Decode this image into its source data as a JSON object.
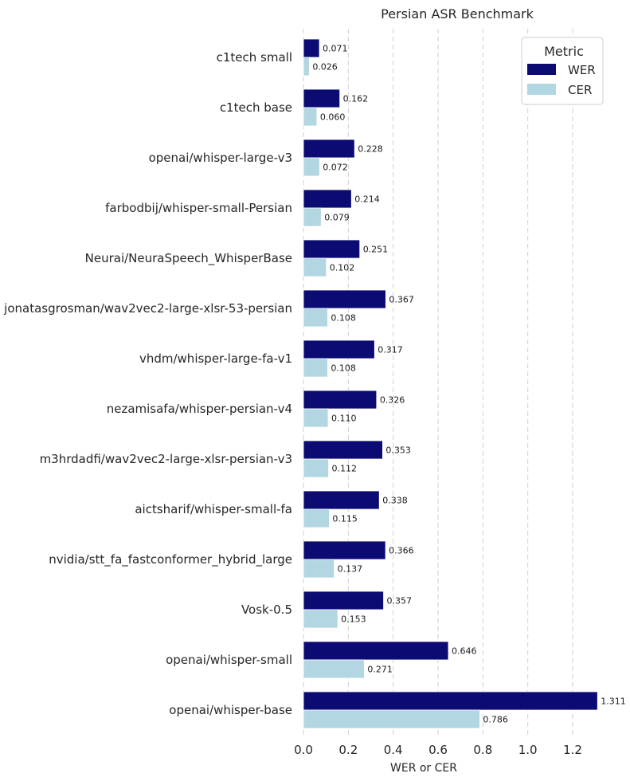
{
  "chart_data": {
    "type": "bar",
    "orientation": "horizontal",
    "title": "Persian ASR Benchmark",
    "xlabel": "WER or CER",
    "ylabel": "",
    "xlim": [
      0,
      1.32
    ],
    "xticks": [
      0.0,
      0.2,
      0.4,
      0.6,
      0.8,
      1.0,
      1.2
    ],
    "xtick_labels": [
      "0.0",
      "0.2",
      "0.4",
      "0.6",
      "0.8",
      "1.0",
      "1.2"
    ],
    "grid": "vertical dashed",
    "categories": [
      "c1tech small",
      "c1tech base",
      "openai/whisper-large-v3",
      "farbodbij/whisper-small-Persian",
      "Neurai/NeuraSpeech_WhisperBase",
      "jonatasgrosman/wav2vec2-large-xlsr-53-persian",
      "vhdm/whisper-large-fa-v1",
      "nezamisafa/whisper-persian-v4",
      "m3hrdadfi/wav2vec2-large-xlsr-persian-v3",
      "aictsharif/whisper-small-fa",
      "nvidia/stt_fa_fastconformer_hybrid_large",
      "Vosk-0.5",
      "openai/whisper-small",
      "openai/whisper-base"
    ],
    "series": [
      {
        "name": "WER",
        "color": "#0b0b73",
        "values": [
          0.071,
          0.162,
          0.228,
          0.214,
          0.251,
          0.367,
          0.317,
          0.326,
          0.353,
          0.338,
          0.366,
          0.357,
          0.646,
          1.311
        ],
        "labels": [
          "0.071",
          "0.162",
          "0.228",
          "0.214",
          "0.251",
          "0.367",
          "0.317",
          "0.326",
          "0.353",
          "0.338",
          "0.366",
          "0.357",
          "0.646",
          "1.311"
        ]
      },
      {
        "name": "CER",
        "color": "#b2d6e2",
        "values": [
          0.026,
          0.06,
          0.072,
          0.079,
          0.102,
          0.108,
          0.108,
          0.11,
          0.112,
          0.115,
          0.137,
          0.153,
          0.271,
          0.786
        ],
        "labels": [
          "0.026",
          "0.060",
          "0.072",
          "0.079",
          "0.102",
          "0.108",
          "0.108",
          "0.110",
          "0.112",
          "0.115",
          "0.137",
          "0.153",
          "0.271",
          "0.786"
        ]
      }
    ],
    "legend": {
      "title": "Metric",
      "placement": "top-right"
    }
  }
}
